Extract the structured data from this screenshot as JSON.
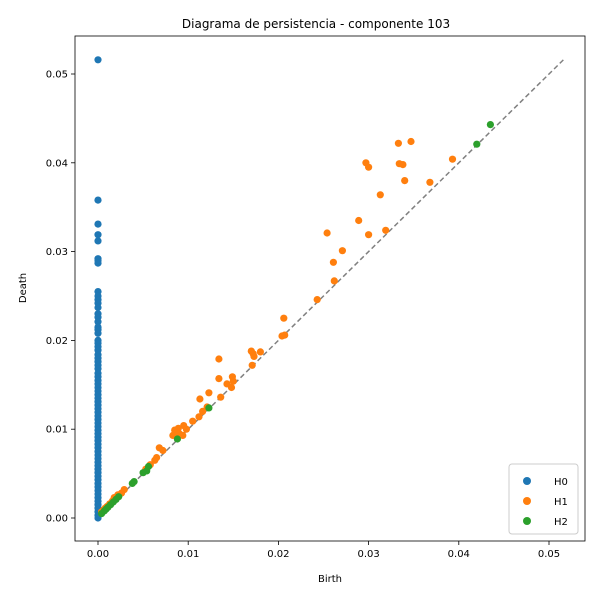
{
  "chart_data": {
    "type": "scatter",
    "title": "Diagrama de persistencia - componente 103",
    "xlabel": "Birth",
    "ylabel": "Death",
    "xlim": [
      -0.0026,
      0.0541
    ],
    "ylim": [
      -0.0026,
      0.0541
    ],
    "x_ticks": [
      0.0,
      0.01,
      0.02,
      0.03,
      0.04,
      0.05
    ],
    "x_tick_labels": [
      "0.00",
      "0.01",
      "0.02",
      "0.03",
      "0.04",
      "0.05"
    ],
    "y_ticks": [
      0.0,
      0.01,
      0.02,
      0.03,
      0.04,
      0.05
    ],
    "y_tick_labels": [
      "0.00",
      "0.01",
      "0.02",
      "0.03",
      "0.04",
      "0.05"
    ],
    "diagonal": {
      "from": 0.0,
      "to": 0.0516,
      "color": "#808080",
      "style": "dashed"
    },
    "grid": false,
    "legend_position": "bottom-right",
    "series": [
      {
        "name": "H0",
        "color": "#1f77b4",
        "points": [
          [
            0,
            0.0516
          ],
          [
            0,
            0.0358
          ],
          [
            0,
            0.0331
          ],
          [
            0,
            0.0319
          ],
          [
            0,
            0.0312
          ],
          [
            0,
            0.0292
          ],
          [
            0,
            0.029
          ],
          [
            0,
            0.0287
          ],
          [
            0,
            0.0255
          ],
          [
            0,
            0.025
          ],
          [
            0,
            0.0246
          ],
          [
            0,
            0.0242
          ],
          [
            0,
            0.0237
          ],
          [
            0,
            0.023
          ],
          [
            0,
            0.0226
          ],
          [
            0,
            0.0221
          ],
          [
            0,
            0.0215
          ],
          [
            0,
            0.0212
          ],
          [
            0,
            0.0208
          ],
          [
            0,
            0.02
          ],
          [
            0,
            0.0197
          ],
          [
            0,
            0.0193
          ],
          [
            0,
            0.0189
          ],
          [
            0,
            0.0184
          ],
          [
            0,
            0.018
          ],
          [
            0,
            0.0176
          ],
          [
            0,
            0.0172
          ],
          [
            0,
            0.0168
          ],
          [
            0,
            0.0163
          ],
          [
            0,
            0.0159
          ],
          [
            0,
            0.0155
          ],
          [
            0,
            0.0151
          ],
          [
            0,
            0.0147
          ],
          [
            0,
            0.0143
          ],
          [
            0,
            0.0139
          ],
          [
            0,
            0.0135
          ],
          [
            0,
            0.0131
          ],
          [
            0,
            0.0127
          ],
          [
            0,
            0.0123
          ],
          [
            0,
            0.0119
          ],
          [
            0,
            0.0115
          ],
          [
            0,
            0.0111
          ],
          [
            0,
            0.0107
          ],
          [
            0,
            0.0103
          ],
          [
            0,
            0.0099
          ],
          [
            0,
            0.0095
          ],
          [
            0,
            0.0091
          ],
          [
            0,
            0.0087
          ],
          [
            0,
            0.0083
          ],
          [
            0,
            0.0079
          ],
          [
            0,
            0.0075
          ],
          [
            0,
            0.0071
          ],
          [
            0,
            0.0067
          ],
          [
            0,
            0.0063
          ],
          [
            0,
            0.0059
          ],
          [
            0,
            0.0055
          ],
          [
            0,
            0.0051
          ],
          [
            0,
            0.0047
          ],
          [
            0,
            0.0043
          ],
          [
            0,
            0.0039
          ],
          [
            0,
            0.0035
          ],
          [
            0,
            0.0031
          ],
          [
            0,
            0.0027
          ],
          [
            0,
            0.0023
          ],
          [
            0,
            0.0019
          ],
          [
            0,
            0.0015
          ],
          [
            0,
            0.0011
          ],
          [
            0,
            0.0007
          ],
          [
            0,
            0.0003
          ],
          [
            0,
            0.0
          ]
        ]
      },
      {
        "name": "H1",
        "color": "#ff7f0e",
        "points": [
          [
            0.0347,
            0.0424
          ],
          [
            0.0333,
            0.0422
          ],
          [
            0.0393,
            0.0404
          ],
          [
            0.0297,
            0.04
          ],
          [
            0.0334,
            0.0399
          ],
          [
            0.0338,
            0.0398
          ],
          [
            0.03,
            0.0395
          ],
          [
            0.034,
            0.038
          ],
          [
            0.0368,
            0.0378
          ],
          [
            0.0313,
            0.0364
          ],
          [
            0.0289,
            0.0335
          ],
          [
            0.0319,
            0.0324
          ],
          [
            0.0254,
            0.0321
          ],
          [
            0.03,
            0.0319
          ],
          [
            0.0271,
            0.0301
          ],
          [
            0.0261,
            0.0288
          ],
          [
            0.0262,
            0.0267
          ],
          [
            0.0243,
            0.0246
          ],
          [
            0.0206,
            0.0225
          ],
          [
            0.0207,
            0.0206
          ],
          [
            0.0204,
            0.0205
          ],
          [
            0.017,
            0.0188
          ],
          [
            0.018,
            0.0187
          ],
          [
            0.0172,
            0.0185
          ],
          [
            0.0173,
            0.0182
          ],
          [
            0.0134,
            0.0179
          ],
          [
            0.0171,
            0.0172
          ],
          [
            0.0149,
            0.0159
          ],
          [
            0.0134,
            0.0157
          ],
          [
            0.015,
            0.0154
          ],
          [
            0.0143,
            0.0151
          ],
          [
            0.0148,
            0.0147
          ],
          [
            0.0123,
            0.0141
          ],
          [
            0.0136,
            0.0136
          ],
          [
            0.0113,
            0.0134
          ],
          [
            0.0121,
            0.0125
          ],
          [
            0.0116,
            0.012
          ],
          [
            0.0112,
            0.0114
          ],
          [
            0.0105,
            0.0109
          ],
          [
            0.0095,
            0.0104
          ],
          [
            0.0089,
            0.0101
          ],
          [
            0.0085,
            0.0099
          ],
          [
            0.0098,
            0.01
          ],
          [
            0.009,
            0.0095
          ],
          [
            0.0083,
            0.0093
          ],
          [
            0.0094,
            0.0093
          ],
          [
            0.0068,
            0.0079
          ],
          [
            0.0072,
            0.0076
          ],
          [
            0.0065,
            0.0068
          ],
          [
            0.0063,
            0.0065
          ],
          [
            0.0058,
            0.006
          ],
          [
            0.0053,
            0.0055
          ],
          [
            0.0029,
            0.0032
          ],
          [
            0.0026,
            0.0028
          ],
          [
            0.0022,
            0.0026
          ],
          [
            0.0018,
            0.0023
          ],
          [
            0.0016,
            0.0019
          ],
          [
            0.0013,
            0.0016
          ],
          [
            0.001,
            0.0013
          ],
          [
            0.0008,
            0.0011
          ],
          [
            0.0006,
            0.0009
          ],
          [
            0.0004,
            0.0007
          ]
        ]
      },
      {
        "name": "H2",
        "color": "#2ca02c",
        "points": [
          [
            0.0435,
            0.0443
          ],
          [
            0.042,
            0.0421
          ],
          [
            0.0123,
            0.0124
          ],
          [
            0.0088,
            0.0089
          ],
          [
            0.0056,
            0.0058
          ],
          [
            0.0054,
            0.0053
          ],
          [
            0.005,
            0.0051
          ],
          [
            0.004,
            0.0041
          ],
          [
            0.0038,
            0.0039
          ],
          [
            0.0023,
            0.0024
          ],
          [
            0.002,
            0.0021
          ],
          [
            0.0017,
            0.0018
          ],
          [
            0.0014,
            0.0015
          ],
          [
            0.0011,
            0.0012
          ],
          [
            0.0009,
            0.001
          ],
          [
            0.0007,
            0.0008
          ],
          [
            0.0004,
            0.0005
          ]
        ]
      }
    ]
  }
}
